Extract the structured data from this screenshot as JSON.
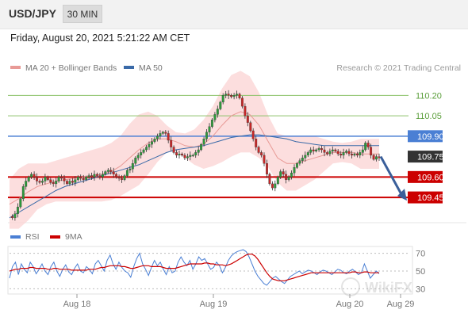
{
  "header": {
    "pair": "USD/JPY",
    "timeframe": "30 MIN"
  },
  "datetime": "Friday, August 20, 2021 5:21:22 AM CET",
  "credit": "Research © 2021 Trading Central",
  "watermark": "WikiFX",
  "colors": {
    "ma20": "#e89a96",
    "band": "#fbd3d3",
    "ma50": "#3a6aa8",
    "resistance": "#8dc26a",
    "pivot": "#4a7fd4",
    "support": "#cc0000",
    "last": "#333333",
    "arrow": "#3a5f9a",
    "rsi": "#4a7fd4",
    "rsi_ma": "#cc0000"
  },
  "chart_data": [
    {
      "type": "candlestick",
      "legend": [
        "MA 20 + Bollinger Bands",
        "MA 50"
      ],
      "ylim": [
        109.27,
        110.33
      ],
      "x_ticks": [
        "Aug 18",
        "Aug 19",
        "Aug 20",
        "Aug 29"
      ],
      "levels": [
        {
          "value": 110.2,
          "label": "110.20",
          "kind": "resistance"
        },
        {
          "value": 110.05,
          "label": "110.05",
          "kind": "resistance"
        },
        {
          "value": 109.9,
          "label": "109.90",
          "kind": "pivot"
        },
        {
          "value": 109.75,
          "label": "109.75",
          "kind": "last"
        },
        {
          "value": 109.6,
          "label": "109.60",
          "kind": "support"
        },
        {
          "value": 109.45,
          "label": "109.45",
          "kind": "support"
        }
      ],
      "close_path": [
        109.31,
        109.3,
        109.33,
        109.38,
        109.44,
        109.53,
        109.57,
        109.6,
        109.62,
        109.6,
        109.57,
        109.56,
        109.57,
        109.6,
        109.58,
        109.56,
        109.55,
        109.57,
        109.6,
        109.59,
        109.57,
        109.55,
        109.57,
        109.56,
        109.58,
        109.6,
        109.59,
        109.58,
        109.6,
        109.61,
        109.6,
        109.62,
        109.61,
        109.6,
        109.62,
        109.64,
        109.65,
        109.64,
        109.62,
        109.6,
        109.59,
        109.58,
        109.61,
        109.65,
        109.66,
        109.7,
        109.74,
        109.76,
        109.78,
        109.8,
        109.82,
        109.84,
        109.86,
        109.88,
        109.9,
        109.92,
        109.93,
        109.92,
        109.87,
        109.82,
        109.78,
        109.76,
        109.77,
        109.76,
        109.74,
        109.75,
        109.76,
        109.76,
        109.78,
        109.8,
        109.84,
        109.88,
        109.93,
        109.97,
        110.02,
        110.06,
        110.1,
        110.15,
        110.2,
        110.21,
        110.2,
        110.19,
        110.2,
        110.21,
        110.18,
        110.12,
        110.05,
        110.0,
        109.94,
        109.88,
        109.82,
        109.78,
        109.76,
        109.7,
        109.62,
        109.55,
        109.52,
        109.55,
        109.6,
        109.64,
        109.62,
        109.58,
        109.6,
        109.63,
        109.67,
        109.7,
        109.72,
        109.74,
        109.76,
        109.78,
        109.8,
        109.79,
        109.8,
        109.81,
        109.8,
        109.78,
        109.77,
        109.79,
        109.8,
        109.79,
        109.77,
        109.76,
        109.78,
        109.79,
        109.77,
        109.76,
        109.77,
        109.76,
        109.78,
        109.8,
        109.85,
        109.82,
        109.76,
        109.73,
        109.75,
        109.74
      ],
      "ma20": [
        109.4,
        109.44,
        109.49,
        109.53,
        109.55,
        109.57,
        109.58,
        109.59,
        109.6,
        109.61,
        109.62,
        109.64,
        109.68,
        109.74,
        109.8,
        109.85,
        109.88,
        109.88,
        109.86,
        109.83,
        109.82,
        109.84,
        109.9,
        109.98,
        110.05,
        110.08,
        110.06,
        109.98,
        109.86,
        109.74,
        109.7,
        109.7,
        109.72,
        109.74,
        109.76,
        109.78,
        109.78,
        109.78,
        109.77,
        109.77,
        109.77
      ],
      "ma50": [
        109.3,
        109.34,
        109.38,
        109.42,
        109.46,
        109.5,
        109.53,
        109.55,
        109.57,
        109.59,
        109.61,
        109.63,
        109.65,
        109.67,
        109.69,
        109.72,
        109.75,
        109.78,
        109.8,
        109.81,
        109.82,
        109.83,
        109.85,
        109.87,
        109.89,
        109.9,
        109.91,
        109.91,
        109.9,
        109.89,
        109.88,
        109.86,
        109.85,
        109.84,
        109.83,
        109.83,
        109.83,
        109.83,
        109.83,
        109.83,
        109.83
      ],
      "band_upper": [
        109.58,
        109.66,
        109.7,
        109.7,
        109.7,
        109.72,
        109.74,
        109.76,
        109.78,
        109.8,
        109.82,
        109.85,
        109.9,
        109.99,
        110.06,
        110.08,
        110.05,
        109.98,
        109.93,
        109.92,
        109.95,
        110.02,
        110.12,
        110.25,
        110.35,
        110.38,
        110.34,
        110.22,
        110.05,
        109.92,
        109.9,
        109.9,
        109.9,
        109.9,
        109.88,
        109.86,
        109.85,
        109.86,
        109.88,
        109.88,
        109.88
      ],
      "band_lower": [
        109.22,
        109.22,
        109.28,
        109.36,
        109.4,
        109.42,
        109.42,
        109.42,
        109.42,
        109.42,
        109.42,
        109.43,
        109.46,
        109.5,
        109.54,
        109.62,
        109.71,
        109.78,
        109.79,
        109.74,
        109.69,
        109.66,
        109.68,
        109.71,
        109.75,
        109.78,
        109.78,
        109.74,
        109.67,
        109.56,
        109.5,
        109.5,
        109.54,
        109.58,
        109.64,
        109.7,
        109.71,
        109.7,
        109.66,
        109.66,
        109.66
      ],
      "forecast": {
        "from": 109.75,
        "to": 109.45
      }
    },
    {
      "type": "line",
      "series": [
        {
          "name": "RSI"
        },
        {
          "name": "9MA"
        }
      ],
      "ylim": [
        25,
        75
      ],
      "y_ticks": [
        70,
        50,
        30
      ],
      "rsi": [
        42,
        55,
        60,
        46,
        58,
        52,
        48,
        60,
        55,
        47,
        52,
        58,
        50,
        46,
        55,
        60,
        50,
        44,
        52,
        57,
        49,
        46,
        53,
        58,
        50,
        48,
        55,
        52,
        47,
        58,
        62,
        56,
        50,
        62,
        68,
        58,
        52,
        60,
        54,
        50,
        48,
        43,
        55,
        64,
        70,
        58,
        52,
        45,
        54,
        62,
        56,
        60,
        52,
        46,
        55,
        48,
        50,
        60,
        66,
        60,
        56,
        62,
        52,
        58,
        66,
        62,
        64,
        58,
        52,
        54,
        60,
        56,
        48,
        54,
        62,
        67,
        70,
        72,
        73,
        74,
        72,
        66,
        58,
        50,
        44,
        40,
        36,
        34,
        38,
        42,
        44,
        41,
        38,
        36,
        40,
        44,
        46,
        48,
        50,
        47,
        49,
        51,
        50,
        48,
        46,
        49,
        51,
        50,
        48,
        46,
        49,
        52,
        51,
        48,
        47,
        50,
        52,
        49,
        46,
        48,
        58,
        50,
        42,
        46,
        50,
        47
      ],
      "ma9": [
        50,
        51,
        52,
        52,
        53,
        53,
        53,
        54,
        54,
        53,
        53,
        53,
        53,
        52,
        52,
        53,
        53,
        52,
        52,
        52,
        52,
        51,
        51,
        51,
        51,
        51,
        51,
        52,
        52,
        52,
        53,
        54,
        54,
        55,
        56,
        56,
        56,
        56,
        55,
        55,
        54,
        53,
        53,
        54,
        55,
        56,
        56,
        56,
        55,
        55,
        55,
        55,
        54,
        53,
        53,
        53,
        53,
        54,
        55,
        56,
        57,
        58,
        58,
        58,
        58,
        58,
        59,
        59,
        58,
        58,
        57,
        57,
        57,
        56,
        57,
        58,
        60,
        62,
        64,
        66,
        68,
        69,
        69,
        67,
        63,
        58,
        53,
        48,
        44,
        41,
        40,
        39,
        39,
        39,
        40,
        41,
        42,
        43,
        44,
        45,
        46,
        47,
        48,
        48,
        48,
        48,
        48,
        48,
        48,
        48,
        48,
        48,
        48,
        48,
        48,
        48,
        49,
        49,
        48,
        48,
        49,
        49,
        48,
        48,
        48,
        48
      ]
    }
  ]
}
